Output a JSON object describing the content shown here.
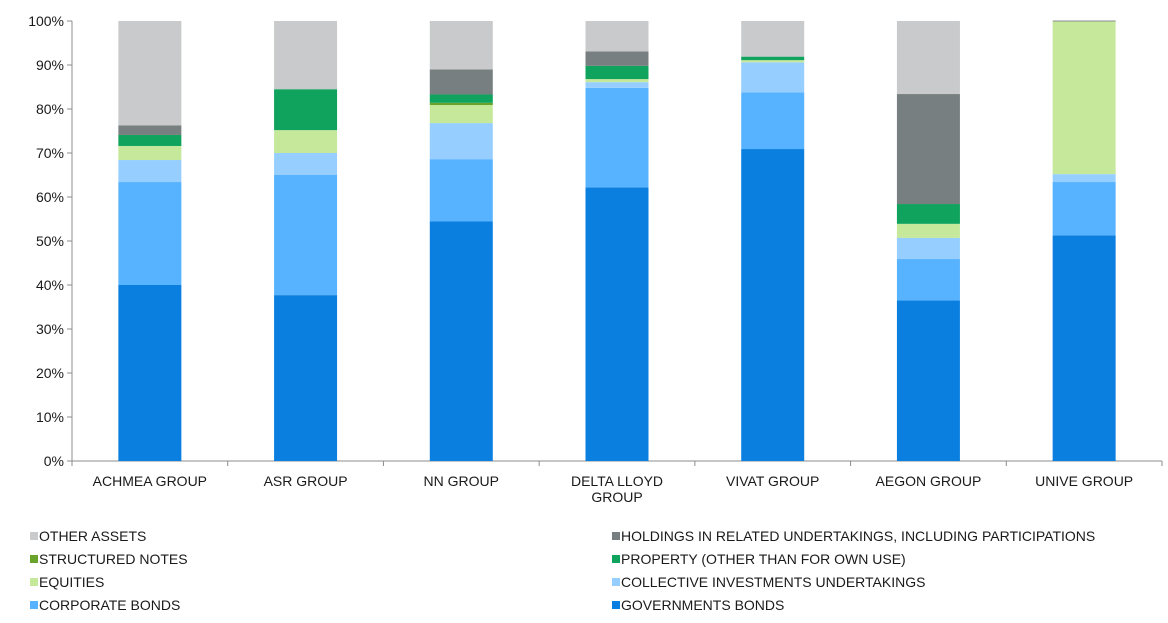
{
  "chart_data": {
    "type": "bar",
    "stacked": true,
    "categories": [
      "ACHMEA GROUP",
      "ASR GROUP",
      "NN GROUP",
      "DELTA LLOYD GROUP",
      "VIVAT GROUP",
      "AEGON GROUP",
      "UNIVE GROUP"
    ],
    "category_lines": [
      [
        "ACHMEA GROUP"
      ],
      [
        "ASR GROUP"
      ],
      [
        "NN GROUP"
      ],
      [
        "DELTA LLOYD",
        "GROUP"
      ],
      [
        "VIVAT GROUP"
      ],
      [
        "AEGON GROUP"
      ],
      [
        "UNIVE GROUP"
      ]
    ],
    "series": [
      {
        "name": "GOVERNMENTS BONDS",
        "color": "#0A7FE0",
        "values": [
          40,
          37.7,
          54.5,
          62.2,
          70.9,
          36.5,
          51.3
        ]
      },
      {
        "name": "CORPORATE BONDS",
        "color": "#57B3FF",
        "values": [
          23.4,
          27.3,
          14.1,
          22.6,
          12.9,
          9.4,
          12.1
        ]
      },
      {
        "name": "COLLECTIVE INVESTMENTS UNDERTAKINGS",
        "color": "#96CEFF",
        "values": [
          5,
          5,
          8.2,
          1.3,
          6.8,
          4.8,
          1.8
        ]
      },
      {
        "name": "EQUITIES",
        "color": "#C5E89B",
        "values": [
          3.2,
          5.2,
          4.1,
          0.7,
          0.5,
          3.2,
          34.7
        ]
      },
      {
        "name": "STRUCTURED NOTES",
        "color": "#6AA329",
        "values": [
          0,
          0,
          0.5,
          0,
          0,
          0,
          0
        ]
      },
      {
        "name": "PROPERTY (OTHER THAN FOR OWN USE)",
        "color": "#0FA35E",
        "values": [
          2.5,
          9.3,
          1.9,
          3,
          0.8,
          4.5,
          0
        ]
      },
      {
        "name": "HOLDINGS IN RELATED UNDERTAKINGS, INCLUDING PARTICIPATIONS",
        "color": "#787F80",
        "values": [
          2.2,
          0,
          5.7,
          3.3,
          0,
          25,
          0.2
        ]
      },
      {
        "name": "OTHER ASSETS",
        "color": "#C8CACB",
        "values": [
          23.7,
          15.5,
          11,
          6.9,
          8.1,
          16.6,
          0
        ]
      }
    ],
    "y_ticks": [
      "0%",
      "10%",
      "20%",
      "30%",
      "40%",
      "50%",
      "60%",
      "70%",
      "80%",
      "90%",
      "100%"
    ],
    "ylim": [
      0,
      100
    ],
    "title": "",
    "xlabel": "",
    "ylabel": "",
    "grid": false,
    "legend_position": "bottom"
  },
  "legend": {
    "order": [
      "OTHER ASSETS",
      "HOLDINGS IN RELATED UNDERTAKINGS, INCLUDING PARTICIPATIONS",
      "STRUCTURED NOTES",
      "PROPERTY (OTHER THAN FOR OWN USE)",
      "EQUITIES",
      "COLLECTIVE INVESTMENTS UNDERTAKINGS",
      "CORPORATE BONDS",
      "GOVERNMENTS BONDS"
    ]
  }
}
